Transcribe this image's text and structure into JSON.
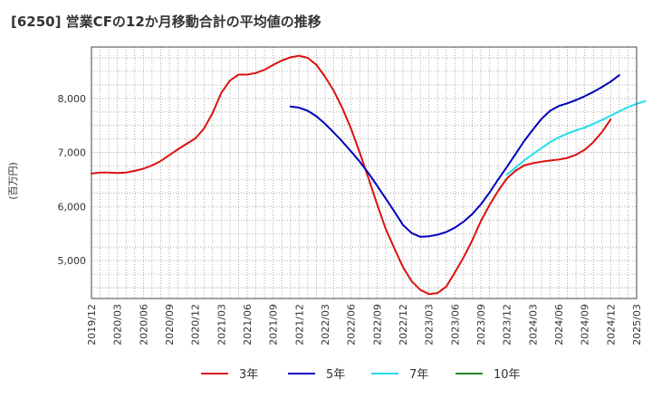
{
  "chart_data": {
    "type": "line",
    "title": "[6250]  営業CFの12か月移動合計の平均値の推移",
    "ylabel": "(百万円)",
    "xlabel": "",
    "ylim": [
      4300,
      8950
    ],
    "y_ticks": [
      5000,
      6000,
      7000,
      8000
    ],
    "y_tick_labels": [
      "5,000",
      "6,000",
      "7,000",
      "8,000"
    ],
    "x_tick_labels": [
      "2019/12",
      "2020/03",
      "2020/06",
      "2020/09",
      "2020/12",
      "2021/03",
      "2021/06",
      "2021/09",
      "2021/12",
      "2022/03",
      "2022/06",
      "2022/09",
      "2022/12",
      "2023/03",
      "2023/06",
      "2023/09",
      "2023/12",
      "2024/03",
      "2024/06",
      "2024/09",
      "2024/12",
      "2025/03"
    ],
    "grid": true,
    "legend_position": "bottom",
    "colors": {
      "3年": "#dd1111",
      "5年": "#0000bb",
      "7年": "#22ddee",
      "10年": "#228822"
    },
    "series": [
      {
        "name": "3年",
        "start": "2019/12",
        "values": [
          6610,
          6630,
          6630,
          6620,
          6630,
          6660,
          6700,
          6760,
          6840,
          6950,
          7060,
          7160,
          7260,
          7440,
          7730,
          8100,
          8330,
          8440,
          8440,
          8470,
          8530,
          8620,
          8700,
          8760,
          8790,
          8750,
          8620,
          8400,
          8140,
          7820,
          7440,
          7000,
          6530,
          6050,
          5590,
          5230,
          4880,
          4620,
          4460,
          4380,
          4400,
          4520,
          4780,
          5060,
          5370,
          5730,
          6030,
          6290,
          6520,
          6660,
          6760,
          6800,
          6830,
          6850,
          6870,
          6900,
          6960,
          7050,
          7190,
          7380,
          7610
        ]
      },
      {
        "name": "5年",
        "start": "2021/11",
        "values": [
          7850,
          7830,
          7770,
          7670,
          7530,
          7370,
          7200,
          7020,
          6830,
          6620,
          6390,
          6150,
          5910,
          5660,
          5510,
          5440,
          5450,
          5480,
          5530,
          5610,
          5720,
          5860,
          6040,
          6260,
          6500,
          6730,
          6970,
          7210,
          7420,
          7620,
          7770,
          7860,
          7910,
          7970,
          8040,
          8120,
          8210,
          8310,
          8430
        ]
      },
      {
        "name": "7年",
        "start": "2023/12",
        "values": [
          6590,
          6720,
          6850,
          6970,
          7080,
          7190,
          7280,
          7350,
          7410,
          7460,
          7530,
          7600,
          7680,
          7760,
          7840,
          7900,
          7950
        ]
      },
      {
        "name": "10年",
        "start": "",
        "values": []
      }
    ]
  }
}
